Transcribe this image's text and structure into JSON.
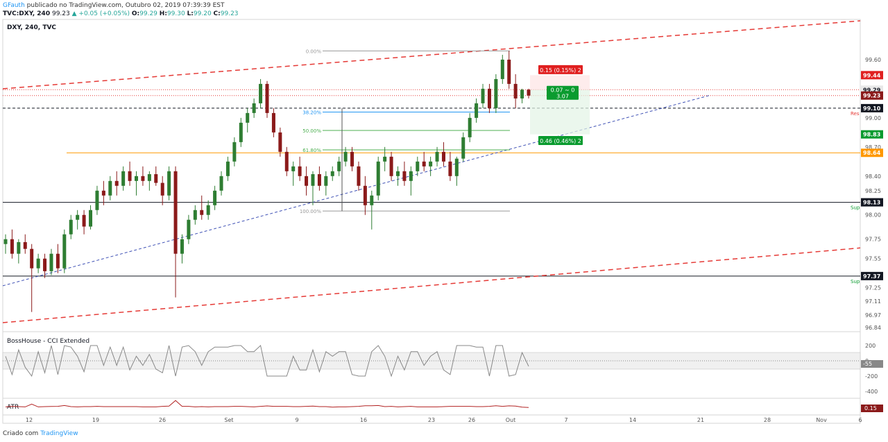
{
  "header": {
    "author": "GFauth",
    "published": "publicado no TradingView.com, Outubro 02, 2019 07:39:39 EST",
    "symbol": "TVC:DXY, 240",
    "last": "99.23",
    "change": "+0.05 (+0.05%)",
    "o_label": "O:",
    "o": "99.29",
    "h_label": "H:",
    "h": "99.30",
    "l_label": "L:",
    "l": "99.20",
    "c_label": "C:",
    "c": "99.23"
  },
  "pane_title": "DXY, 240, TVC",
  "footer": {
    "prefix": "Criado com",
    "brand": "TradingView"
  },
  "colors": {
    "up": "#26a69a",
    "down": "#8b1a1a",
    "up_candle": "#2e7d32",
    "channel": "#e53935",
    "trendline": "#3f51b5",
    "orange": "#ff9800",
    "price_label": "#131722",
    "green_label": "#0a9b2f",
    "red_label": "#e02020"
  },
  "chart_data": {
    "type": "candlestick",
    "x_ticks": [
      "12",
      "19",
      "26",
      "Set",
      "9",
      "16",
      "23",
      "26",
      "Out",
      "7",
      "14",
      "21",
      "28",
      "Nov",
      "6"
    ],
    "y_ticks": [
      "99.60",
      "99.30",
      "99.00",
      "98.70",
      "98.40",
      "98.25",
      "98.00",
      "97.75",
      "97.55",
      "97.25",
      "97.11",
      "96.97",
      "96.84"
    ],
    "ylim": [
      96.84,
      100.0
    ],
    "levels": [
      {
        "name": "resistance-line",
        "value": 99.1,
        "label": "Res",
        "style": "dashed"
      },
      {
        "name": "support-line-1",
        "value": 98.13,
        "label": "Sup",
        "style": "solid"
      },
      {
        "name": "support-line-2",
        "value": 97.37,
        "label": "Sup",
        "style": "solid"
      },
      {
        "name": "orange-level",
        "value": 98.64,
        "style": "solid"
      },
      {
        "name": "red-dotted-1",
        "value": 99.29,
        "style": "dotted"
      },
      {
        "name": "red-dotted-2",
        "value": 99.23,
        "style": "dotted"
      }
    ],
    "price_labels": [
      {
        "value": "99.44",
        "color": "red"
      },
      {
        "value": "99.29",
        "color": "light"
      },
      {
        "value": "99.23",
        "color": "darkred"
      },
      {
        "value": "99.10",
        "color": "black"
      },
      {
        "value": "98.83",
        "color": "green"
      },
      {
        "value": "98.64",
        "color": "orange"
      },
      {
        "value": "98.13",
        "color": "black"
      },
      {
        "value": "97.37",
        "color": "black"
      }
    ],
    "fibonacci": [
      {
        "label": "0.00%",
        "value": 99.69
      },
      {
        "label": "38.20%",
        "value": 99.06
      },
      {
        "label": "50.00%",
        "value": 98.87
      },
      {
        "label": "61.80%",
        "value": 98.67
      },
      {
        "label": "100.00%",
        "value": 98.04
      }
    ],
    "position_tool": {
      "target": "0.15 (0.15%) 2",
      "entry": "0.07 ∼ 0",
      "ratio": "3.07",
      "stop": "0.46 (0.46%) 2"
    },
    "ohlc": [
      [
        97.7,
        97.8,
        97.6,
        97.75
      ],
      [
        97.75,
        97.85,
        97.55,
        97.6
      ],
      [
        97.6,
        97.75,
        97.5,
        97.72
      ],
      [
        97.72,
        97.8,
        97.6,
        97.65
      ],
      [
        97.65,
        97.7,
        97.0,
        97.45
      ],
      [
        97.45,
        97.6,
        97.4,
        97.55
      ],
      [
        97.55,
        97.6,
        97.35,
        97.42
      ],
      [
        97.42,
        97.65,
        97.38,
        97.6
      ],
      [
        97.6,
        97.7,
        97.4,
        97.45
      ],
      [
        97.45,
        97.85,
        97.4,
        97.8
      ],
      [
        97.8,
        98.0,
        97.75,
        97.95
      ],
      [
        97.95,
        98.05,
        97.85,
        98.0
      ],
      [
        98.0,
        98.05,
        97.8,
        97.88
      ],
      [
        97.88,
        98.1,
        97.85,
        98.05
      ],
      [
        98.05,
        98.3,
        98.0,
        98.25
      ],
      [
        98.25,
        98.35,
        98.1,
        98.2
      ],
      [
        98.2,
        98.4,
        98.15,
        98.35
      ],
      [
        98.35,
        98.45,
        98.2,
        98.3
      ],
      [
        98.3,
        98.5,
        98.25,
        98.45
      ],
      [
        98.45,
        98.55,
        98.3,
        98.35
      ],
      [
        98.35,
        98.45,
        98.2,
        98.4
      ],
      [
        98.4,
        98.5,
        98.3,
        98.35
      ],
      [
        98.35,
        98.45,
        98.25,
        98.42
      ],
      [
        98.42,
        98.5,
        98.3,
        98.33
      ],
      [
        98.33,
        98.4,
        98.1,
        98.2
      ],
      [
        98.2,
        98.5,
        98.15,
        98.45
      ],
      [
        98.45,
        98.5,
        97.15,
        97.6
      ],
      [
        97.6,
        97.8,
        97.5,
        97.75
      ],
      [
        97.75,
        98.0,
        97.7,
        97.95
      ],
      [
        97.95,
        98.1,
        97.9,
        98.05
      ],
      [
        98.05,
        98.2,
        97.95,
        98.0
      ],
      [
        98.0,
        98.15,
        97.95,
        98.1
      ],
      [
        98.1,
        98.3,
        98.05,
        98.25
      ],
      [
        98.25,
        98.45,
        98.2,
        98.4
      ],
      [
        98.4,
        98.6,
        98.35,
        98.55
      ],
      [
        98.55,
        98.8,
        98.5,
        98.75
      ],
      [
        98.75,
        99.0,
        98.7,
        98.95
      ],
      [
        98.95,
        99.1,
        98.85,
        99.05
      ],
      [
        99.05,
        99.2,
        99.0,
        99.15
      ],
      [
        99.15,
        99.4,
        99.1,
        99.35
      ],
      [
        99.35,
        99.38,
        99.0,
        99.05
      ],
      [
        99.05,
        99.1,
        98.8,
        98.85
      ],
      [
        98.85,
        98.9,
        98.6,
        98.65
      ],
      [
        98.65,
        98.7,
        98.4,
        98.45
      ],
      [
        98.45,
        98.55,
        98.3,
        98.5
      ],
      [
        98.5,
        98.6,
        98.35,
        98.4
      ],
      [
        98.4,
        98.5,
        98.2,
        98.3
      ],
      [
        98.3,
        98.45,
        98.1,
        98.42
      ],
      [
        98.42,
        98.5,
        98.25,
        98.3
      ],
      [
        98.3,
        98.45,
        98.2,
        98.4
      ],
      [
        98.4,
        98.5,
        98.35,
        98.45
      ],
      [
        98.45,
        98.6,
        98.4,
        98.55
      ],
      [
        98.55,
        98.7,
        98.5,
        98.65
      ],
      [
        98.65,
        98.7,
        98.45,
        98.5
      ],
      [
        98.5,
        98.55,
        98.25,
        98.3
      ],
      [
        98.3,
        98.4,
        98.0,
        98.1
      ],
      [
        98.1,
        98.25,
        97.85,
        98.2
      ],
      [
        98.2,
        98.6,
        98.15,
        98.55
      ],
      [
        98.55,
        98.7,
        98.45,
        98.6
      ],
      [
        98.6,
        98.65,
        98.35,
        98.4
      ],
      [
        98.4,
        98.5,
        98.3,
        98.45
      ],
      [
        98.45,
        98.55,
        98.3,
        98.35
      ],
      [
        98.35,
        98.5,
        98.2,
        98.45
      ],
      [
        98.45,
        98.6,
        98.4,
        98.55
      ],
      [
        98.55,
        98.65,
        98.45,
        98.5
      ],
      [
        98.5,
        98.6,
        98.4,
        98.55
      ],
      [
        98.55,
        98.7,
        98.5,
        98.65
      ],
      [
        98.65,
        98.75,
        98.5,
        98.55
      ],
      [
        98.55,
        98.65,
        98.35,
        98.4
      ],
      [
        98.4,
        98.6,
        98.3,
        98.58
      ],
      [
        98.58,
        98.85,
        98.55,
        98.8
      ],
      [
        98.8,
        99.05,
        98.75,
        99.0
      ],
      [
        99.0,
        99.2,
        98.95,
        99.15
      ],
      [
        99.15,
        99.35,
        99.1,
        99.3
      ],
      [
        99.3,
        99.35,
        99.05,
        99.1
      ],
      [
        99.1,
        99.45,
        99.05,
        99.4
      ],
      [
        99.4,
        99.65,
        99.35,
        99.6
      ],
      [
        99.6,
        99.69,
        99.3,
        99.35
      ],
      [
        99.35,
        99.45,
        99.1,
        99.2
      ],
      [
        99.2,
        99.3,
        99.15,
        99.29
      ],
      [
        99.29,
        99.3,
        99.2,
        99.23
      ]
    ],
    "indicators": [
      {
        "name": "BossHouse - CCI Extended",
        "y_ticks": [
          "200",
          "0",
          "-200",
          "-400"
        ],
        "last_value": "-55"
      },
      {
        "name": "ATR",
        "last_value": "0.15"
      }
    ]
  }
}
